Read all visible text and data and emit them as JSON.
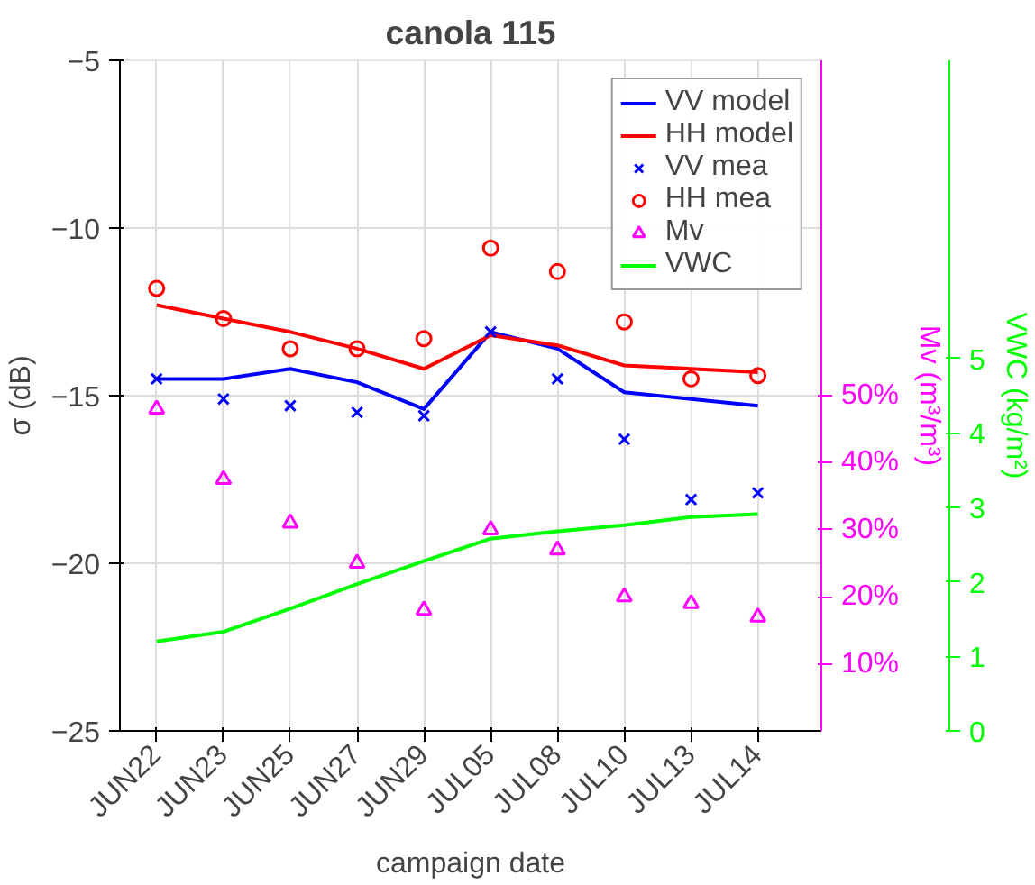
{
  "chart_data": {
    "type": "line",
    "title": "canola 115",
    "xlabel": "campaign date",
    "ylabel": "σ (dB)",
    "y2label": "Mv (m³/m³)",
    "y3label": "VWC (kg/m²)",
    "categories": [
      "JUN22",
      "JUN23",
      "JUN25",
      "JUN27",
      "JUN29",
      "JUL05",
      "JUL08",
      "JUL10",
      "JUL13",
      "JUL14"
    ],
    "series": [
      {
        "name": "VV model",
        "color": "#0000ff",
        "values": [
          -14.5,
          -14.5,
          -14.2,
          -14.6,
          -15.4,
          -13.1,
          -13.6,
          -14.9,
          -15.1,
          -15.3
        ]
      },
      {
        "name": "HH model",
        "color": "#ff0000",
        "values": [
          -12.3,
          -12.7,
          -13.1,
          -13.6,
          -14.2,
          -13.2,
          -13.5,
          -14.1,
          -14.2,
          -14.3
        ]
      },
      {
        "name": "VV mea",
        "type": "scatter",
        "marker": "cross",
        "color": "#0000ff",
        "values": [
          -14.5,
          -15.1,
          -15.3,
          -15.5,
          -15.6,
          -13.1,
          -14.5,
          -16.3,
          -18.1,
          -17.9
        ]
      },
      {
        "name": "HH mea",
        "type": "scatter",
        "marker": "circle",
        "color": "#ff0000",
        "values": [
          -11.8,
          -12.7,
          -13.6,
          -13.6,
          -13.3,
          -10.6,
          -11.3,
          -12.8,
          -14.5,
          -14.4
        ]
      },
      {
        "name": "Mv",
        "type": "scatter",
        "marker": "triangle",
        "axis": "y2",
        "color": "#ff00ff",
        "values": [
          48,
          37.5,
          31,
          25,
          18,
          30,
          27,
          20,
          19,
          17
        ]
      },
      {
        "name": "VWC",
        "axis": "y3",
        "color": "#00ff00",
        "values": [
          1.2,
          1.33,
          1.64,
          1.97,
          2.28,
          2.58,
          2.68,
          2.76,
          2.87,
          2.91
        ]
      }
    ],
    "ylim": [
      -25,
      -5
    ],
    "yticks": [
      -25,
      -20,
      -15,
      -10,
      -5
    ],
    "y2lim": [
      0,
      100
    ],
    "y2ticks": [
      {
        "value": 10,
        "label": "10%"
      },
      {
        "value": 20,
        "label": "20%"
      },
      {
        "value": 30,
        "label": "30%"
      },
      {
        "value": 40,
        "label": "40%"
      },
      {
        "value": 50,
        "label": "50%"
      }
    ],
    "y3lim": [
      0,
      9
    ],
    "y3ticks": [
      0,
      1,
      2,
      3,
      4,
      5
    ],
    "grid": true,
    "legend": "top right"
  }
}
